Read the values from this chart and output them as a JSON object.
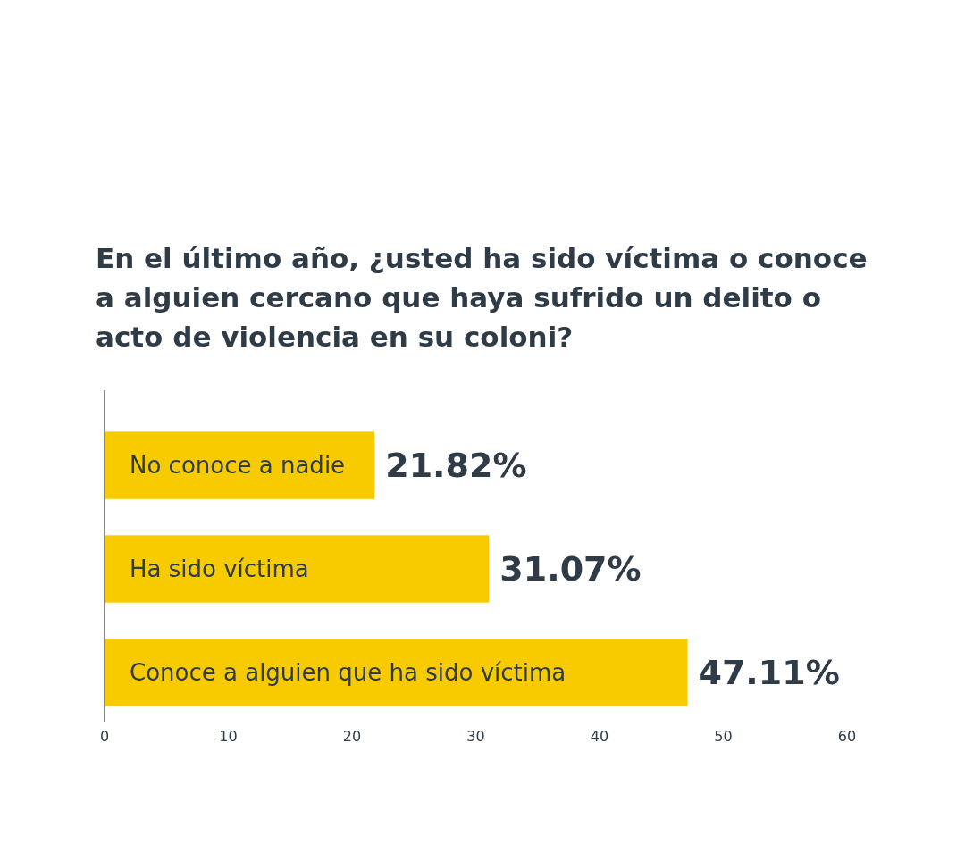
{
  "chart_data": {
    "type": "bar",
    "orientation": "horizontal",
    "title": "En el último año, ¿usted ha sido víctima o conoce a alguien cercano que haya sufrido un delito o acto de violencia en su coloni?",
    "categories": [
      "No conoce a nadie",
      "Ha sido víctima",
      "Conoce a alguien que ha sido víctima"
    ],
    "values": [
      21.82,
      31.07,
      47.11
    ],
    "value_labels": [
      "21.82%",
      "31.07%",
      "47.11%"
    ],
    "color": "#f7cb00",
    "xlim": [
      0,
      60
    ],
    "xticks": [
      0,
      10,
      20,
      30,
      40,
      50,
      60
    ],
    "grid": false
  }
}
